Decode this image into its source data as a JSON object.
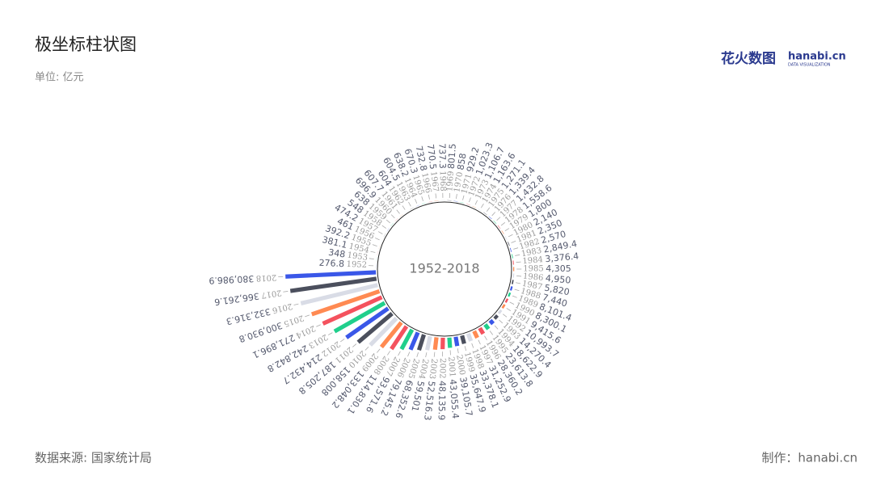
{
  "header": {
    "title": "极坐标柱状图",
    "subtitle": "单位: 亿元",
    "logo": "花火数图",
    "logo_brand": "hanabi.cn",
    "logo_tagline": "DATA VISUALIZATION"
  },
  "footer": {
    "source": "数据来源: 国家统计局",
    "credit": "制作：hanabi.cn"
  },
  "chart_data": {
    "type": "polar-bar",
    "center_label": "1952-2018",
    "categories": [
      "1952",
      "1953",
      "1954",
      "1955",
      "1956",
      "1957",
      "1958",
      "1959",
      "1960",
      "1961",
      "1962",
      "1963",
      "1964",
      "1965",
      "1966",
      "1967",
      "1968",
      "1969",
      "1970",
      "1971",
      "1972",
      "1973",
      "1974",
      "1975",
      "1976",
      "1977",
      "1978",
      "1979",
      "1980",
      "1981",
      "1982",
      "1983",
      "1984",
      "1985",
      "1986",
      "1987",
      "1988",
      "1989",
      "1990",
      "1991",
      "1992",
      "1993",
      "1994",
      "1995",
      "1996",
      "1997",
      "1998",
      "1999",
      "2000",
      "2001",
      "2002",
      "2003",
      "2004",
      "2005",
      "2006",
      "2007",
      "2008",
      "2009",
      "2010",
      "2011",
      "2012",
      "2013",
      "2014",
      "2015",
      "2016",
      "2017",
      "2018"
    ],
    "values": [
      276.8,
      348,
      381.1,
      392.2,
      461,
      474.2,
      548,
      638,
      696.9,
      607.7,
      604,
      604.5,
      638.2,
      670.3,
      732.8,
      770.5,
      737.3,
      801.5,
      858,
      929.2,
      1023.3,
      1106.7,
      1163.6,
      1271.1,
      1339.4,
      1432.8,
      1558.6,
      1800,
      2140,
      2350,
      2570,
      2849.4,
      3376.4,
      4305,
      4950,
      5820,
      7440,
      8101.4,
      8300.1,
      9415.6,
      10993.7,
      14270.4,
      18622.9,
      23613.8,
      28360.2,
      31252.9,
      33378.1,
      35647.9,
      39105.7,
      43055.4,
      48135.9,
      52516.3,
      59501,
      68352.6,
      79145.2,
      93571.6,
      114830.1,
      133048.2,
      158008,
      187205.8,
      214432.7,
      242842.8,
      271896.1,
      300930.8,
      332316.3,
      366261.6,
      380986.9
    ],
    "value_labels": [
      "276.8",
      "348",
      "381.1",
      "392.2",
      "461",
      "474.2",
      "548",
      "638",
      "696.9",
      "607.7",
      "604",
      "604.5",
      "638.2",
      "670.3",
      "732.8",
      "770.5",
      "737.3",
      "801.5",
      "858",
      "929.2",
      "1,023.3",
      "1,106.7",
      "1,163.6",
      "1,271.1",
      "1,339.4",
      "1,432.8",
      "1,558.6",
      "1,800",
      "2,140",
      "2,350",
      "2,570",
      "2,849.4",
      "3,376.4",
      "4,305",
      "4,950",
      "5,820",
      "7,440",
      "8,101.4",
      "8,300.1",
      "9,415.6",
      "10,993.7",
      "14,270.4",
      "18,622.9",
      "23,613.8",
      "28,360.2",
      "31,252.9",
      "33,378.1",
      "35,647.9",
      "39,105.7",
      "43,055.4",
      "48,135.9",
      "52,516.3",
      "59,501",
      "68,352.6",
      "79,145.2",
      "93,571.6",
      "114,830.1",
      "133,048.2",
      "158,008",
      "187,205.8",
      "214,432.7",
      "242,842.8",
      "271,896.1",
      "300,930.8",
      "332,316.3",
      "366,261.6",
      "380,986.9"
    ],
    "colors": [
      "#3a57e8",
      "#20cf8c",
      "#f4525e",
      "#ff8a52",
      "#d9dce6",
      "#4b4f5d"
    ]
  }
}
